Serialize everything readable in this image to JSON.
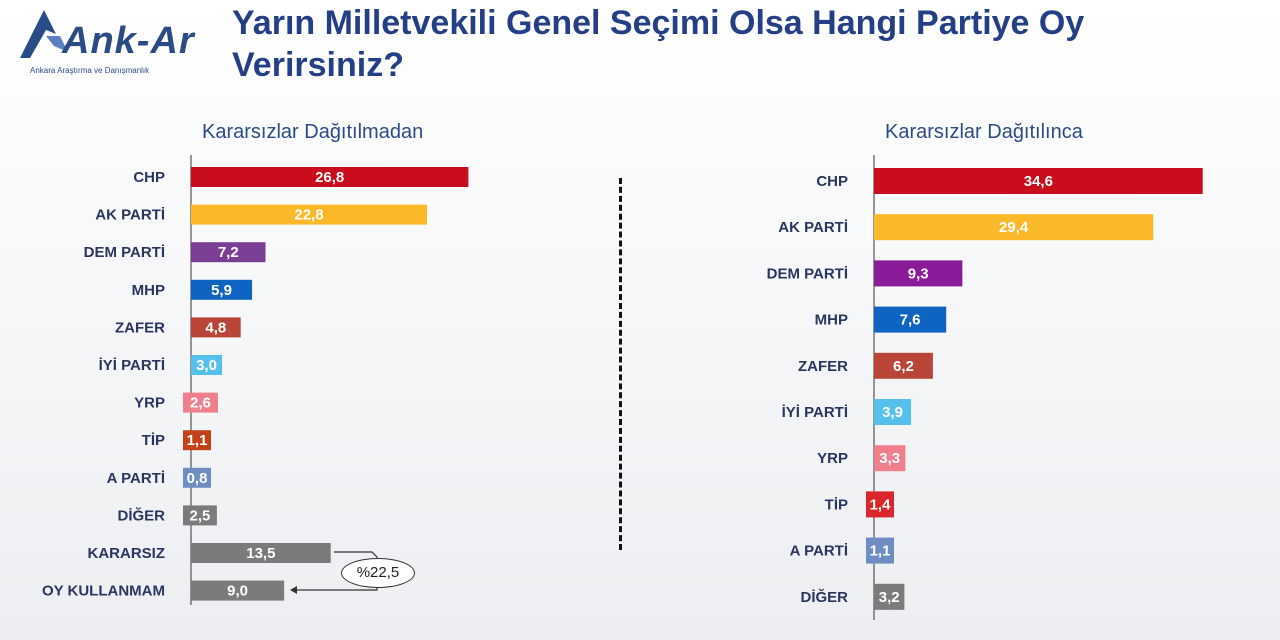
{
  "header": {
    "logo_text": "Ank-Ar",
    "logo_subtitle": "Ankara Araştırma ve Danışmanlık",
    "title": "Yarın Milletvekili Genel Seçimi Olsa Hangi Partiye Oy Verirsiniz?"
  },
  "chart_data": [
    {
      "type": "bar",
      "orientation": "horizontal",
      "title": "Kararsızlar Dağıtılmadan",
      "categories": [
        "CHP",
        "AK PARTİ",
        "DEM PARTİ",
        "MHP",
        "ZAFER",
        "İYİ PARTİ",
        "YRP",
        "TİP",
        "A PARTİ",
        "DİĞER",
        "KARARSIZ",
        "OY KULLANMAM"
      ],
      "values": [
        26.8,
        22.8,
        7.2,
        5.9,
        4.8,
        3.0,
        2.6,
        1.1,
        0.8,
        2.5,
        13.5,
        9.0
      ],
      "value_labels": [
        "26,8",
        "22,8",
        "7,2",
        "5,9",
        "4,8",
        "3,0",
        "2,6",
        "1,1",
        "0,8",
        "2,5",
        "13,5",
        "9,0"
      ],
      "colors": [
        "#c90d1c",
        "#fbb829",
        "#7a3f94",
        "#1064c1",
        "#b84538",
        "#55c0ec",
        "#ef7f8c",
        "#c4421a",
        "#6f8dc2",
        "#7b7b7b",
        "#7b7b7b",
        "#7b7b7b"
      ],
      "annotation": "%22,5"
    },
    {
      "type": "bar",
      "orientation": "horizontal",
      "title": "Kararsızlar Dağıtılınca",
      "categories": [
        "CHP",
        "AK PARTİ",
        "DEM PARTİ",
        "MHP",
        "ZAFER",
        "İYİ PARTİ",
        "YRP",
        "TİP",
        "A PARTİ",
        "DİĞER"
      ],
      "values": [
        34.6,
        29.4,
        9.3,
        7.6,
        6.2,
        3.9,
        3.3,
        1.4,
        1.1,
        3.2
      ],
      "value_labels": [
        "34,6",
        "29,4",
        "9,3",
        "7,6",
        "6,2",
        "3,9",
        "3,3",
        "1,4",
        "1,1",
        "3,2"
      ],
      "colors": [
        "#c90d1c",
        "#fbb829",
        "#8a1c9a",
        "#1064c1",
        "#b84538",
        "#55c0ec",
        "#ef7f8c",
        "#d8262b",
        "#6f8dc2",
        "#7b7b7b"
      ]
    }
  ]
}
